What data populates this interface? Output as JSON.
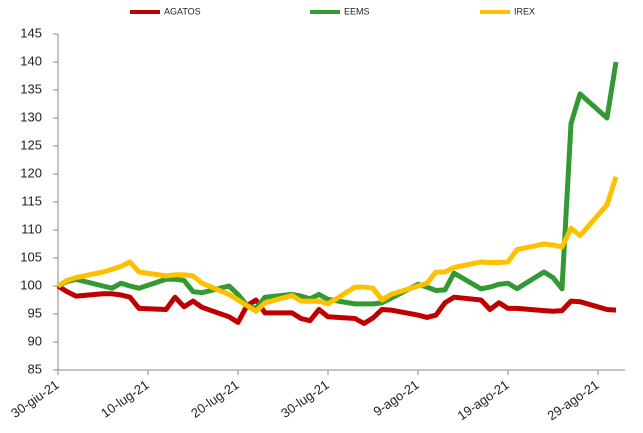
{
  "chart_data": {
    "type": "line",
    "x": [
      "2021-06-30",
      "2021-07-01",
      "2021-07-02",
      "2021-07-05",
      "2021-07-06",
      "2021-07-07",
      "2021-07-08",
      "2021-07-09",
      "2021-07-12",
      "2021-07-13",
      "2021-07-14",
      "2021-07-15",
      "2021-07-16",
      "2021-07-19",
      "2021-07-20",
      "2021-07-21",
      "2021-07-22",
      "2021-07-23",
      "2021-07-26",
      "2021-07-27",
      "2021-07-28",
      "2021-07-29",
      "2021-07-30",
      "2021-08-02",
      "2021-08-03",
      "2021-08-04",
      "2021-08-05",
      "2021-08-06",
      "2021-08-09",
      "2021-08-10",
      "2021-08-11",
      "2021-08-12",
      "2021-08-13",
      "2021-08-16",
      "2021-08-17",
      "2021-08-18",
      "2021-08-19",
      "2021-08-20",
      "2021-08-23",
      "2021-08-24",
      "2021-08-25",
      "2021-08-26",
      "2021-08-27",
      "2021-08-30",
      "2021-08-31"
    ],
    "series": [
      {
        "name": "AGATOS",
        "color": "#c00000",
        "values": [
          100,
          99,
          98.2,
          98.6,
          98.6,
          98.4,
          98,
          96,
          95.8,
          98,
          96.3,
          97.3,
          96.2,
          94.5,
          93.5,
          96.5,
          97.5,
          95.2,
          95.2,
          94.2,
          93.8,
          95.8,
          94.5,
          94.2,
          93.3,
          94.3,
          95.8,
          95.7,
          94.8,
          94.4,
          94.8,
          97,
          98,
          97.5,
          95.8,
          97,
          96,
          96,
          95.6,
          95.5,
          95.6,
          97.3,
          97.2,
          95.8,
          95.7
        ]
      },
      {
        "name": "EEMS",
        "color": "#339933",
        "values": [
          100,
          100.8,
          101.2,
          100,
          99.6,
          100.5,
          100,
          99.6,
          101.2,
          101.2,
          101,
          99,
          98.8,
          100,
          98.5,
          96.5,
          96,
          98,
          98.5,
          98.2,
          97.7,
          98.5,
          97.6,
          96.8,
          96.8,
          96.8,
          97,
          97.8,
          100.3,
          99.8,
          99.2,
          99.3,
          102.3,
          99.5,
          99.8,
          100.3,
          100.5,
          99.5,
          102.5,
          101.5,
          99.5,
          129,
          134.3,
          130,
          140
        ]
      },
      {
        "name": "IREX",
        "color": "#ffc000",
        "values": [
          100,
          101,
          101.5,
          102.5,
          103,
          103.5,
          104.3,
          102.5,
          101.8,
          102,
          102,
          101.8,
          100.5,
          98.5,
          97.5,
          96.5,
          95.5,
          97,
          98.3,
          97.3,
          97.3,
          97.3,
          96.8,
          99.8,
          99.8,
          99.6,
          97.5,
          98.5,
          100,
          100.5,
          102.5,
          102.5,
          103.3,
          104.3,
          104.2,
          104.2,
          104.3,
          106.5,
          107.5,
          107.3,
          107,
          110.3,
          109,
          114.5,
          119.5
        ]
      }
    ],
    "xlim": [
      "2021-06-30",
      "2021-09-01"
    ],
    "xticks": [
      {
        "value": "2021-06-30",
        "label": "30-giu-21"
      },
      {
        "value": "2021-07-10",
        "label": "10-lug-21"
      },
      {
        "value": "2021-07-20",
        "label": "20-lug-21"
      },
      {
        "value": "2021-07-30",
        "label": "30-lug-21"
      },
      {
        "value": "2021-08-09",
        "label": "9-ago-21"
      },
      {
        "value": "2021-08-19",
        "label": "19-ago-21"
      },
      {
        "value": "2021-08-29",
        "label": "29-ago-21"
      }
    ],
    "ylim": [
      85,
      145
    ],
    "yticks": [
      85,
      90,
      95,
      100,
      105,
      110,
      115,
      120,
      125,
      130,
      135,
      140,
      145
    ],
    "legend": "top"
  }
}
